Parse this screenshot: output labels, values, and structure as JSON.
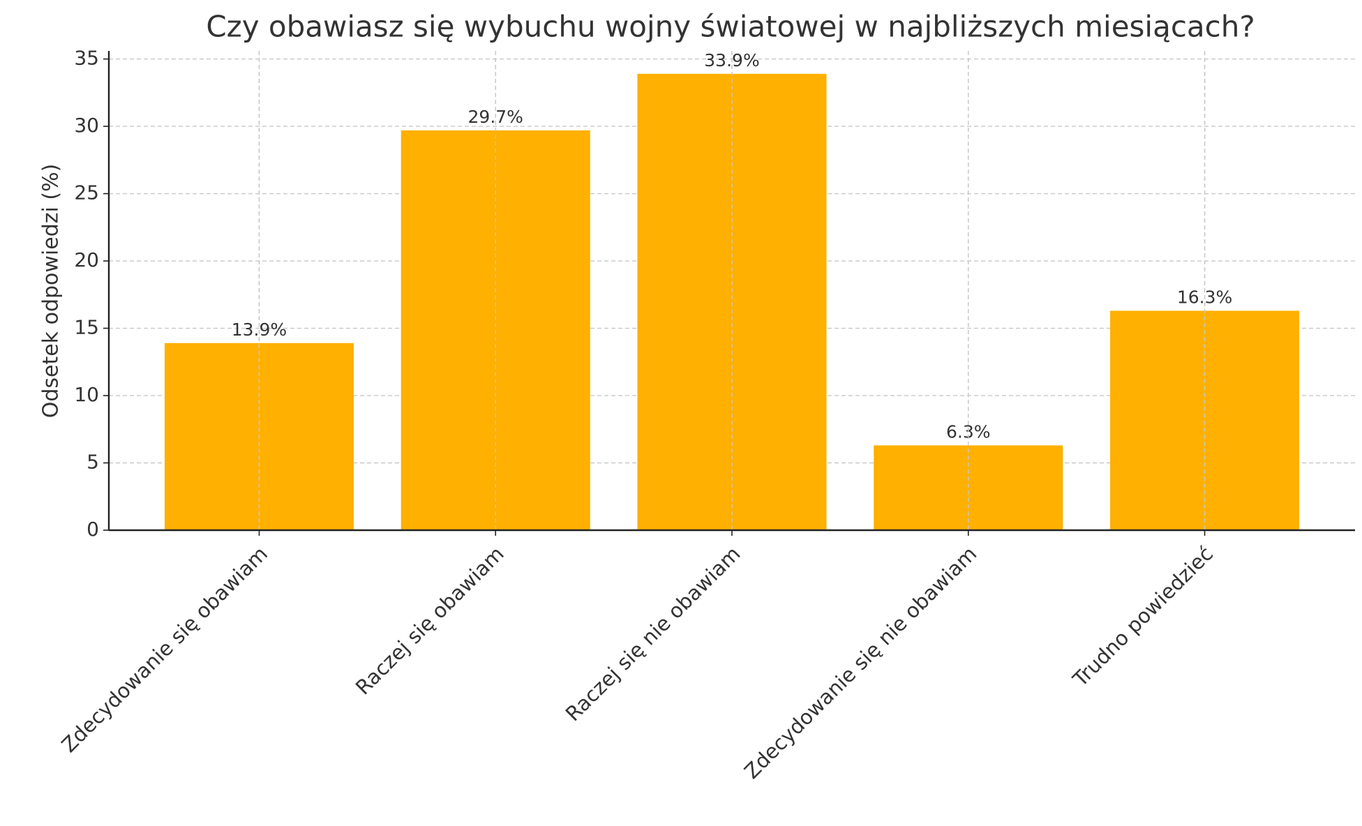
{
  "chart_data": {
    "type": "bar",
    "title": "Czy obawiasz się wybuchu wojny światowej w najbliższych miesiącach?",
    "y_label": "Odsetek odpowiedzi (%)",
    "categories": [
      "Zdecydowanie się obawiam",
      "Raczej się obawiam",
      "Raczej się nie obawiam",
      "Zdecydowanie się nie obawiam",
      "Trudno powiedzieć"
    ],
    "values": [
      13.9,
      29.7,
      33.9,
      6.3,
      16.3
    ],
    "value_labels": [
      "13.9%",
      "29.7%",
      "33.9%",
      "6.3%",
      "16.3%"
    ],
    "color": "#ffb000",
    "ylim": [
      0,
      35.6
    ],
    "yticks": [
      0,
      5,
      10,
      15,
      20,
      25,
      30,
      35
    ],
    "grid": true
  }
}
